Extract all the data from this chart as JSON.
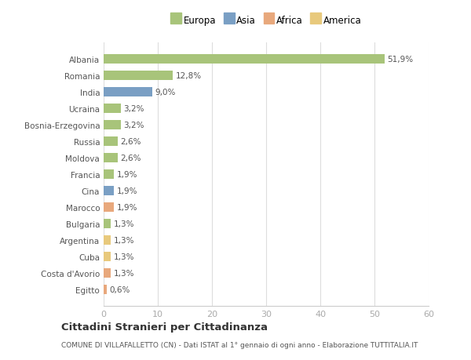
{
  "categories": [
    "Egitto",
    "Costa d'Avorio",
    "Cuba",
    "Argentina",
    "Bulgaria",
    "Marocco",
    "Cina",
    "Francia",
    "Moldova",
    "Russia",
    "Bosnia-Erzegovina",
    "Ucraina",
    "India",
    "Romania",
    "Albania"
  ],
  "values": [
    0.6,
    1.3,
    1.3,
    1.3,
    1.3,
    1.9,
    1.9,
    1.9,
    2.6,
    2.6,
    3.2,
    3.2,
    9.0,
    12.8,
    51.9
  ],
  "bar_colors": [
    "#e8a87c",
    "#e8a87c",
    "#e8c97c",
    "#e8c97c",
    "#a8c47a",
    "#e8a87c",
    "#7a9fc4",
    "#a8c47a",
    "#a8c47a",
    "#a8c47a",
    "#a8c47a",
    "#a8c47a",
    "#7a9fc4",
    "#a8c47a",
    "#a8c47a"
  ],
  "labels": [
    "0,6%",
    "1,3%",
    "1,3%",
    "1,3%",
    "1,3%",
    "1,9%",
    "1,9%",
    "1,9%",
    "2,6%",
    "2,6%",
    "3,2%",
    "3,2%",
    "9,0%",
    "12,8%",
    "51,9%"
  ],
  "legend": [
    {
      "label": "Europa",
      "color": "#a8c47a"
    },
    {
      "label": "Asia",
      "color": "#7a9fc4"
    },
    {
      "label": "Africa",
      "color": "#e8a87c"
    },
    {
      "label": "America",
      "color": "#e8c97c"
    }
  ],
  "title": "Cittadini Stranieri per Cittadinanza",
  "subtitle": "COMUNE DI VILLAFALLETTO (CN) - Dati ISTAT al 1° gennaio di ogni anno - Elaborazione TUTTITALIA.IT",
  "xlim": [
    0,
    60
  ],
  "xticks": [
    0,
    10,
    20,
    30,
    40,
    50,
    60
  ],
  "background_color": "#ffffff",
  "bar_height": 0.55
}
